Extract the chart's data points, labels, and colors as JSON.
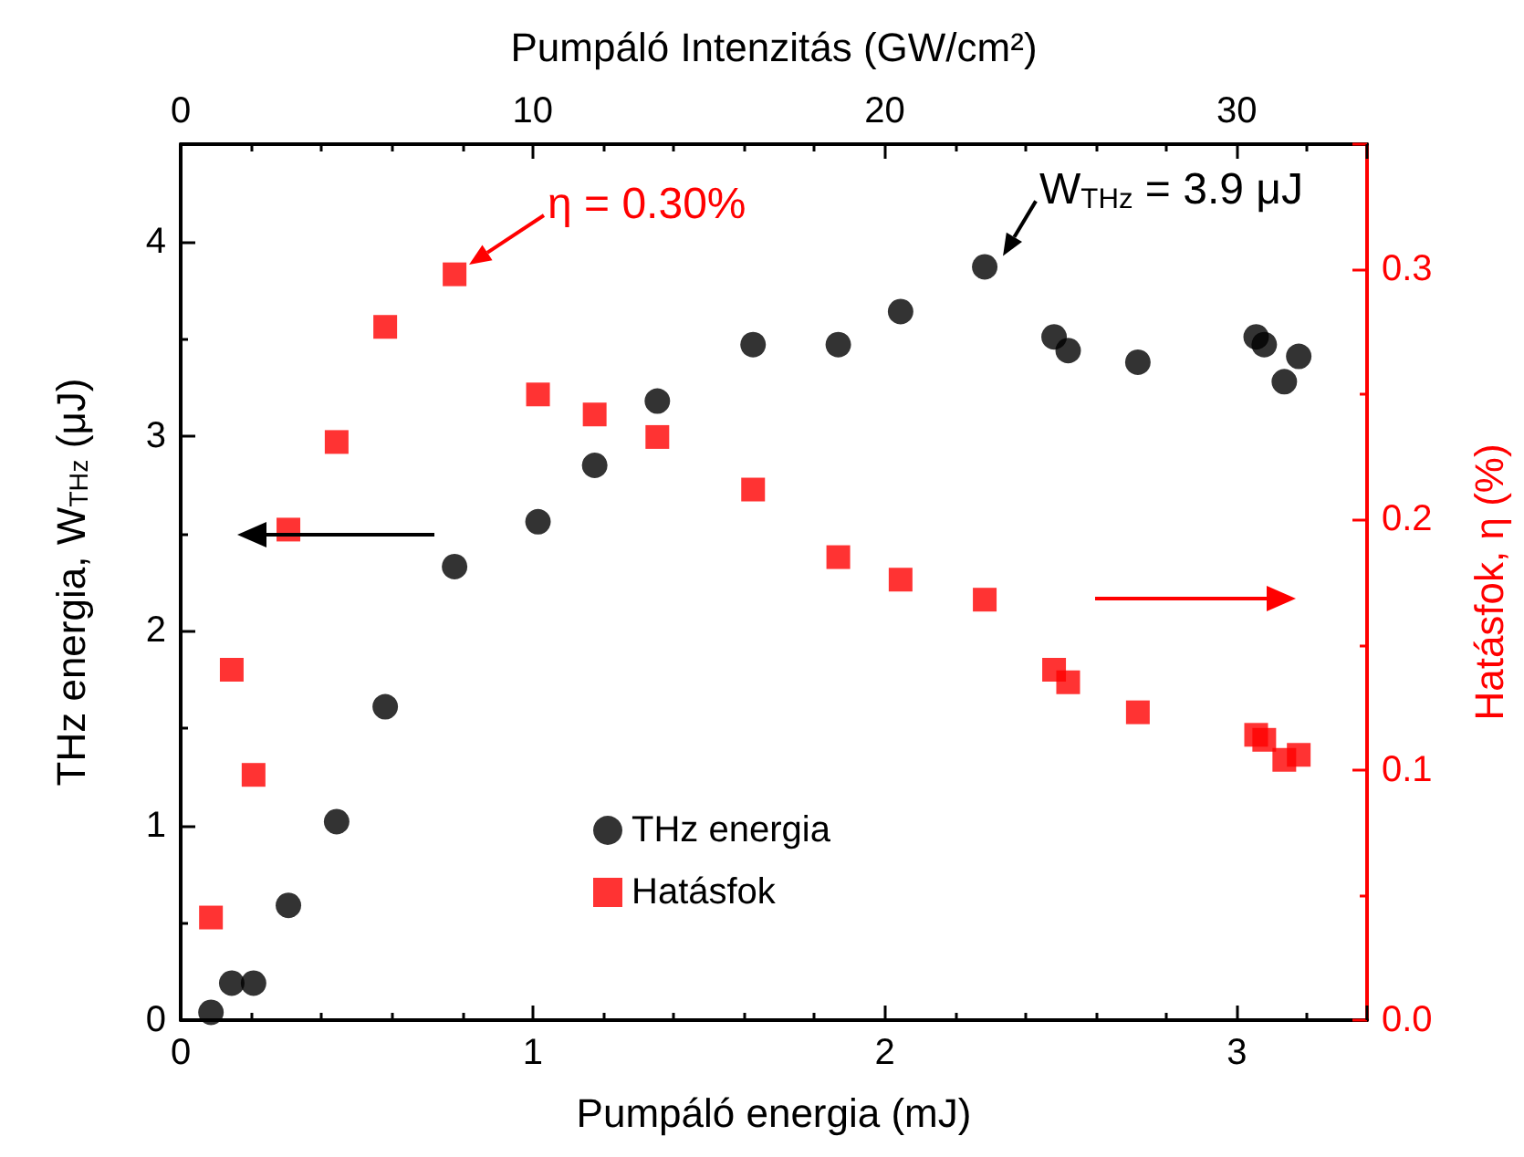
{
  "chart_data": {
    "type": "scatter",
    "xlabel": "Pumpáló energia (mJ)",
    "x2label": "Pumpáló Intenzitás (GW/cm²)",
    "ylabel": "THz energia, W$_{THz}$ (μJ)",
    "y2label": "Hatásfok, η (%)",
    "x": [
      0.086,
      0.145,
      0.207,
      0.306,
      0.443,
      0.581,
      0.778,
      1.015,
      1.176,
      1.354,
      1.626,
      1.868,
      2.045,
      2.284,
      2.481,
      2.521,
      2.719,
      3.055,
      3.078,
      3.135,
      3.176
    ],
    "series": [
      {
        "name": "THz energia",
        "marker": "circle",
        "color": "#000000",
        "values": [
          0.04,
          0.19,
          0.19,
          0.59,
          1.02,
          1.61,
          2.33,
          2.56,
          2.85,
          3.18,
          3.47,
          3.47,
          3.64,
          3.87,
          3.51,
          3.44,
          3.38,
          3.51,
          3.47,
          3.28,
          3.41
        ]
      },
      {
        "name": "Hatásfok",
        "marker": "square",
        "color": "#ff0000",
        "axis": "y2",
        "values": [
          0.041,
          0.14,
          0.098,
          0.196,
          0.231,
          0.277,
          0.298,
          0.25,
          0.242,
          0.233,
          0.212,
          0.185,
          0.176,
          0.168,
          0.14,
          0.135,
          0.123,
          0.114,
          0.112,
          0.104,
          0.106
        ]
      }
    ],
    "xlim": [
      0,
      3.37
    ],
    "xticks": [
      0,
      1,
      2,
      3
    ],
    "x2lim": [
      0,
      33.7
    ],
    "x2ticks": [
      0,
      10,
      20,
      30
    ],
    "ylim": [
      0,
      4.5
    ],
    "yticks": [
      0,
      1,
      2,
      3,
      4
    ],
    "y2lim": [
      0,
      0.35
    ],
    "y2ticks": [
      {
        "value": 0,
        "label": "0.0"
      },
      {
        "value": 0.1,
        "label": "0.1"
      },
      {
        "value": 0.2,
        "label": "0.2"
      },
      {
        "value": 0.3,
        "label": "0.3"
      }
    ],
    "annotations": [
      "η = 0.30%",
      {
        "text": "W$_{THz}$ = 3.9 μJ",
        "x": 2.284,
        "y": 3.87
      }
    ],
    "legend": "bottom",
    "grid": false
  }
}
